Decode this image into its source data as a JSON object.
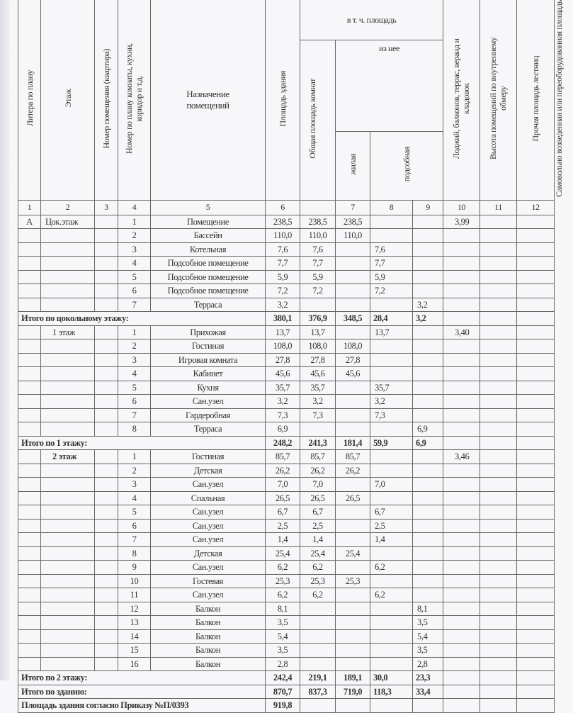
{
  "header": {
    "litera": "Литера по плану",
    "floor": "Этаж",
    "apartment": "Номер помещения (квартира)",
    "room_no": "Номер по плану комнаты, кухни, коридор и т.д.",
    "purpose": "Назначение помещений",
    "building_area": "Площадь здания",
    "incl_area": "в т. ч. площадь",
    "rooms_total": "Общая площадь комнат",
    "of_which": "из нее",
    "living": "жилая",
    "auxiliary": "подсобная",
    "loggias": "Лоджий, балконов, террас, веранд и кладовок",
    "height": "Высота помещений по внутреннему обмеру",
    "stairs": "Прочая площадь лестниц",
    "unauthorized": "Самовольно возведенная или переоборудованная площадь",
    "numbers": [
      "1",
      "2",
      "3",
      "4",
      "5",
      "6",
      "",
      "7",
      "8",
      "9",
      "10",
      "11",
      "12"
    ]
  },
  "rows": [
    {
      "type": "row",
      "cells": [
        "А",
        "Цок.этаж",
        "",
        "1",
        "Помещение",
        "238,5",
        "238,5",
        "238,5",
        "",
        "",
        "3,99",
        "",
        ""
      ]
    },
    {
      "type": "row",
      "cells": [
        "",
        "",
        "",
        "2",
        "Бассейн",
        "110,0",
        "110,0",
        "110,0",
        "",
        "",
        "",
        "",
        ""
      ]
    },
    {
      "type": "row",
      "cells": [
        "",
        "",
        "",
        "3",
        "Котельная",
        "7,6",
        "7,6",
        "",
        "7,6",
        "",
        "",
        "",
        ""
      ]
    },
    {
      "type": "row",
      "cells": [
        "",
        "",
        "",
        "4",
        "Подсобное помещение",
        "7,7",
        "7,7",
        "",
        "7,7",
        "",
        "",
        "",
        ""
      ]
    },
    {
      "type": "row",
      "cells": [
        "",
        "",
        "",
        "5",
        "Подсобное помещение",
        "5,9",
        "5,9",
        "",
        "5,9",
        "",
        "",
        "",
        ""
      ]
    },
    {
      "type": "row",
      "cells": [
        "",
        "",
        "",
        "6",
        "Подсобное помещение",
        "7,2",
        "7,2",
        "",
        "7,2",
        "",
        "",
        "",
        ""
      ]
    },
    {
      "type": "row",
      "cells": [
        "",
        "",
        "",
        "7",
        "Терраса",
        "3,2",
        "",
        "",
        "",
        "3,2",
        "",
        "",
        ""
      ]
    },
    {
      "type": "total",
      "label": "Итого по цокольному этажу:",
      "cells": [
        "380,1",
        "376,9",
        "348,5",
        "28,4",
        "3,2",
        "",
        "",
        ""
      ]
    },
    {
      "type": "row",
      "cells": [
        "",
        "1 этаж",
        "",
        "1",
        "Прихожая",
        "13,7",
        "13,7",
        "",
        "13,7",
        "",
        "3,40",
        "",
        ""
      ]
    },
    {
      "type": "row",
      "cells": [
        "",
        "",
        "",
        "2",
        "Гостиная",
        "108,0",
        "108,0",
        "108,0",
        "",
        "",
        "",
        "",
        ""
      ]
    },
    {
      "type": "row",
      "cells": [
        "",
        "",
        "",
        "3",
        "Игровая комната",
        "27,8",
        "27,8",
        "27,8",
        "",
        "",
        "",
        "",
        ""
      ]
    },
    {
      "type": "row",
      "cells": [
        "",
        "",
        "",
        "4",
        "Кабинет",
        "45,6",
        "45,6",
        "45,6",
        "",
        "",
        "",
        "",
        ""
      ]
    },
    {
      "type": "row",
      "cells": [
        "",
        "",
        "",
        "5",
        "Кухня",
        "35,7",
        "35,7",
        "",
        "35,7",
        "",
        "",
        "",
        ""
      ]
    },
    {
      "type": "row",
      "cells": [
        "",
        "",
        "",
        "6",
        "Сан.узел",
        "3,2",
        "3,2",
        "",
        "3,2",
        "",
        "",
        "",
        ""
      ]
    },
    {
      "type": "row",
      "cells": [
        "",
        "",
        "",
        "7",
        "Гардеробная",
        "7,3",
        "7,3",
        "",
        "7,3",
        "",
        "",
        "",
        ""
      ]
    },
    {
      "type": "row",
      "cells": [
        "",
        "",
        "",
        "8",
        "Терраса",
        "6,9",
        "",
        "",
        "",
        "6,9",
        "",
        "",
        ""
      ]
    },
    {
      "type": "total",
      "label": "Итого по 1 этажу:",
      "cells": [
        "248,2",
        "241,3",
        "181,4",
        "59,9",
        "6,9",
        "",
        "",
        ""
      ]
    },
    {
      "type": "row",
      "bold_floor": true,
      "cells": [
        "",
        "2 этаж",
        "",
        "1",
        "Гостиная",
        "85,7",
        "85,7",
        "85,7",
        "",
        "",
        "3,46",
        "",
        ""
      ]
    },
    {
      "type": "row",
      "cells": [
        "",
        "",
        "",
        "2",
        "Детская",
        "26,2",
        "26,2",
        "26,2",
        "",
        "",
        "",
        "",
        ""
      ]
    },
    {
      "type": "row",
      "cells": [
        "",
        "",
        "",
        "3",
        "Сан.узел",
        "7,0",
        "7,0",
        "",
        "7,0",
        "",
        "",
        "",
        ""
      ]
    },
    {
      "type": "row",
      "cells": [
        "",
        "",
        "",
        "4",
        "Спальная",
        "26,5",
        "26,5",
        "26,5",
        "",
        "",
        "",
        "",
        ""
      ]
    },
    {
      "type": "row",
      "cells": [
        "",
        "",
        "",
        "5",
        "Сан.узел",
        "6,7",
        "6,7",
        "",
        "6,7",
        "",
        "",
        "",
        ""
      ]
    },
    {
      "type": "row",
      "cells": [
        "",
        "",
        "",
        "6",
        "Сан.узел",
        "2,5",
        "2,5",
        "",
        "2,5",
        "",
        "",
        "",
        ""
      ]
    },
    {
      "type": "row",
      "cells": [
        "",
        "",
        "",
        "7",
        "Сан.узел",
        "1,4",
        "1,4",
        "",
        "1,4",
        "",
        "",
        "",
        ""
      ]
    },
    {
      "type": "row",
      "cells": [
        "",
        "",
        "",
        "8",
        "Детская",
        "25,4",
        "25,4",
        "25,4",
        "",
        "",
        "",
        "",
        ""
      ]
    },
    {
      "type": "row",
      "cells": [
        "",
        "",
        "",
        "9",
        "Сан.узел",
        "6,2",
        "6,2",
        "",
        "6,2",
        "",
        "",
        "",
        ""
      ]
    },
    {
      "type": "row",
      "cells": [
        "",
        "",
        "",
        "10",
        "Гостевая",
        "25,3",
        "25,3",
        "25,3",
        "",
        "",
        "",
        "",
        ""
      ]
    },
    {
      "type": "row",
      "cells": [
        "",
        "",
        "",
        "11",
        "Сан.узел",
        "6,2",
        "6,2",
        "",
        "6,2",
        "",
        "",
        "",
        ""
      ]
    },
    {
      "type": "row",
      "cells": [
        "",
        "",
        "",
        "12",
        "Балкон",
        "8,1",
        "",
        "",
        "",
        "8,1",
        "",
        "",
        ""
      ]
    },
    {
      "type": "row",
      "cells": [
        "",
        "",
        "",
        "13",
        "Балкон",
        "3,5",
        "",
        "",
        "",
        "3,5",
        "",
        "",
        ""
      ]
    },
    {
      "type": "row",
      "cells": [
        "",
        "",
        "",
        "14",
        "Балкон",
        "5,4",
        "",
        "",
        "",
        "5,4",
        "",
        "",
        ""
      ]
    },
    {
      "type": "row",
      "cells": [
        "",
        "",
        "",
        "15",
        "Балкон",
        "3,5",
        "",
        "",
        "",
        "3,5",
        "",
        "",
        ""
      ]
    },
    {
      "type": "row",
      "cells": [
        "",
        "",
        "",
        "16",
        "Балкон",
        "2,8",
        "",
        "",
        "",
        "2,8",
        "",
        "",
        ""
      ]
    },
    {
      "type": "total",
      "label": "Итого по 2 этажу:",
      "cells": [
        "242,4",
        "219,1",
        "189,1",
        "30,0",
        "23,3",
        "",
        "",
        ""
      ]
    },
    {
      "type": "total",
      "label": "Итого по зданию:",
      "cells": [
        "870,7",
        "837,3",
        "719,0",
        "118,3",
        "33,4",
        "",
        "",
        ""
      ]
    },
    {
      "type": "total",
      "label": "Площадь здания согласно Приказу №П/0393",
      "cells": [
        "919,8",
        "",
        "",
        "",
        "",
        "",
        "",
        ""
      ]
    }
  ]
}
